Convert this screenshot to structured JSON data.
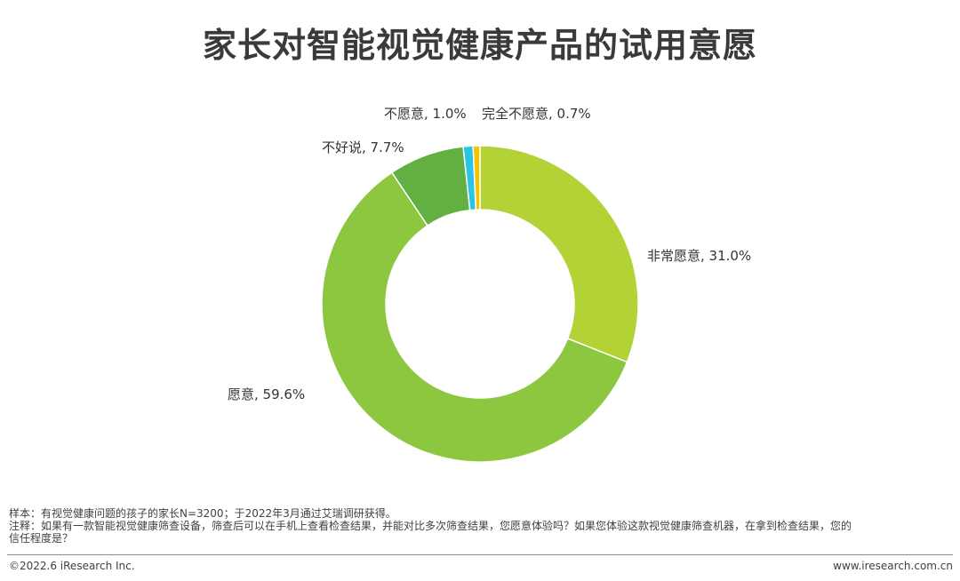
{
  "chart_data": {
    "type": "pie",
    "title": "家长对智能视觉健康产品的试用意愿",
    "slices": [
      {
        "label": "非常愿意",
        "value": 31.0,
        "text": "非常愿意, 31.0%",
        "color": "#b2d235"
      },
      {
        "label": "愿意",
        "value": 59.6,
        "text": "愿意, 59.6%",
        "color": "#8dc63f"
      },
      {
        "label": "不好说",
        "value": 7.7,
        "text": "不好说, 7.7%",
        "color": "#62b042"
      },
      {
        "label": "不愿意",
        "value": 1.0,
        "text": "不愿意, 1.0%",
        "color": "#29c4e6"
      },
      {
        "label": "完全不愿意",
        "value": 0.7,
        "text": "完全不愿意, 0.7%",
        "color": "#f2c500"
      }
    ],
    "style": "donut"
  },
  "notes": {
    "sample": "样本：有视觉健康问题的孩子的家长N=3200；于2022年3月通过艾瑞调研获得。",
    "note_line1": "注释：如果有一款智能视觉健康筛查设备，筛查后可以在手机上查看检查结果，并能对比多次筛查结果，您愿意体验吗？如果您体验这款视觉健康筛查机器，在拿到检查结果，您的",
    "note_line2": "信任程度是？"
  },
  "footer": {
    "copyright": "©2022.6 iResearch Inc.",
    "website": "www.iresearch.com.cn"
  }
}
